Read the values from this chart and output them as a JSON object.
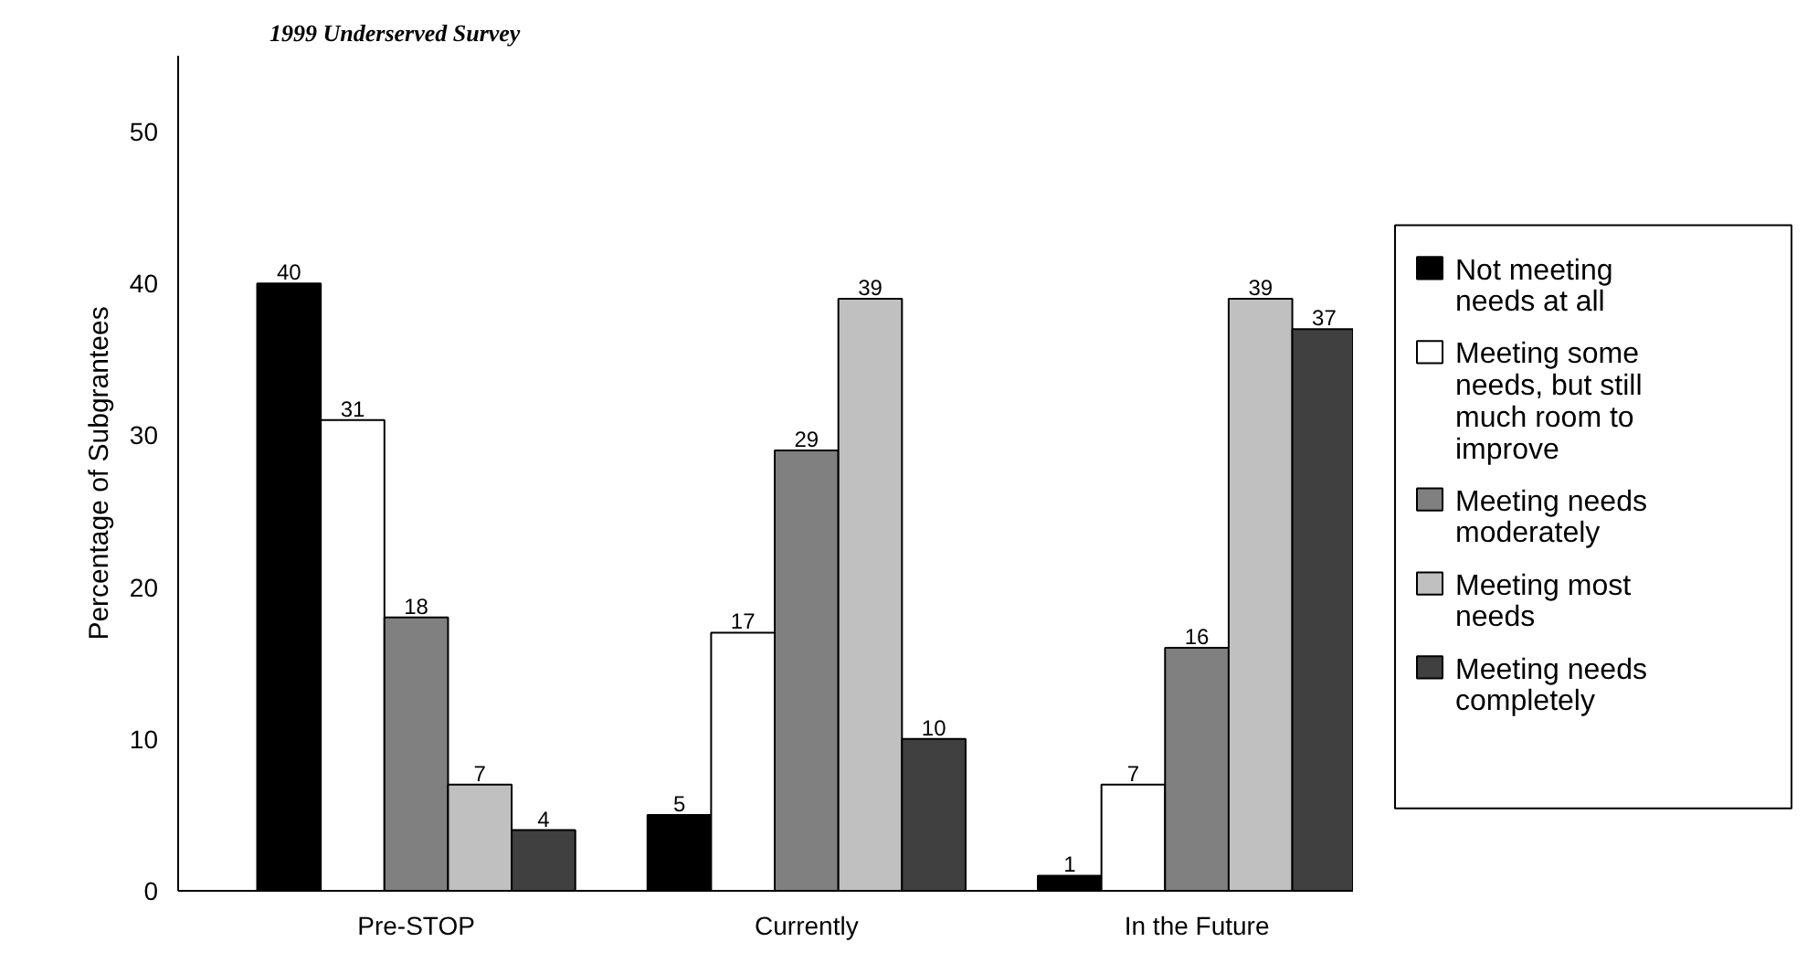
{
  "chart_data": {
    "type": "bar",
    "title": "1999 Underserved Survey",
    "ylabel": "Percentage of Subgrantees",
    "categories": [
      "Pre-STOP",
      "Currently",
      "In the Future"
    ],
    "series": [
      {
        "name": "Not meeting needs at all",
        "color": "#000000",
        "values": [
          40,
          5,
          1
        ]
      },
      {
        "name": "Meeting some needs, but still much room to improve",
        "color": "#ffffff",
        "values": [
          31,
          17,
          7
        ]
      },
      {
        "name": "Meeting needs moderately",
        "color": "#808080",
        "values": [
          18,
          29,
          16
        ]
      },
      {
        "name": "Meeting most needs",
        "color": "#c0c0c0",
        "values": [
          7,
          39,
          39
        ]
      },
      {
        "name": "Meeting needs completely",
        "color": "#404040",
        "values": [
          4,
          10,
          37
        ]
      }
    ],
    "ylim": [
      0,
      55
    ],
    "yticks": [
      0,
      10,
      20,
      30,
      40,
      50
    ],
    "grid": false,
    "legend": "right",
    "data_labels": true
  }
}
